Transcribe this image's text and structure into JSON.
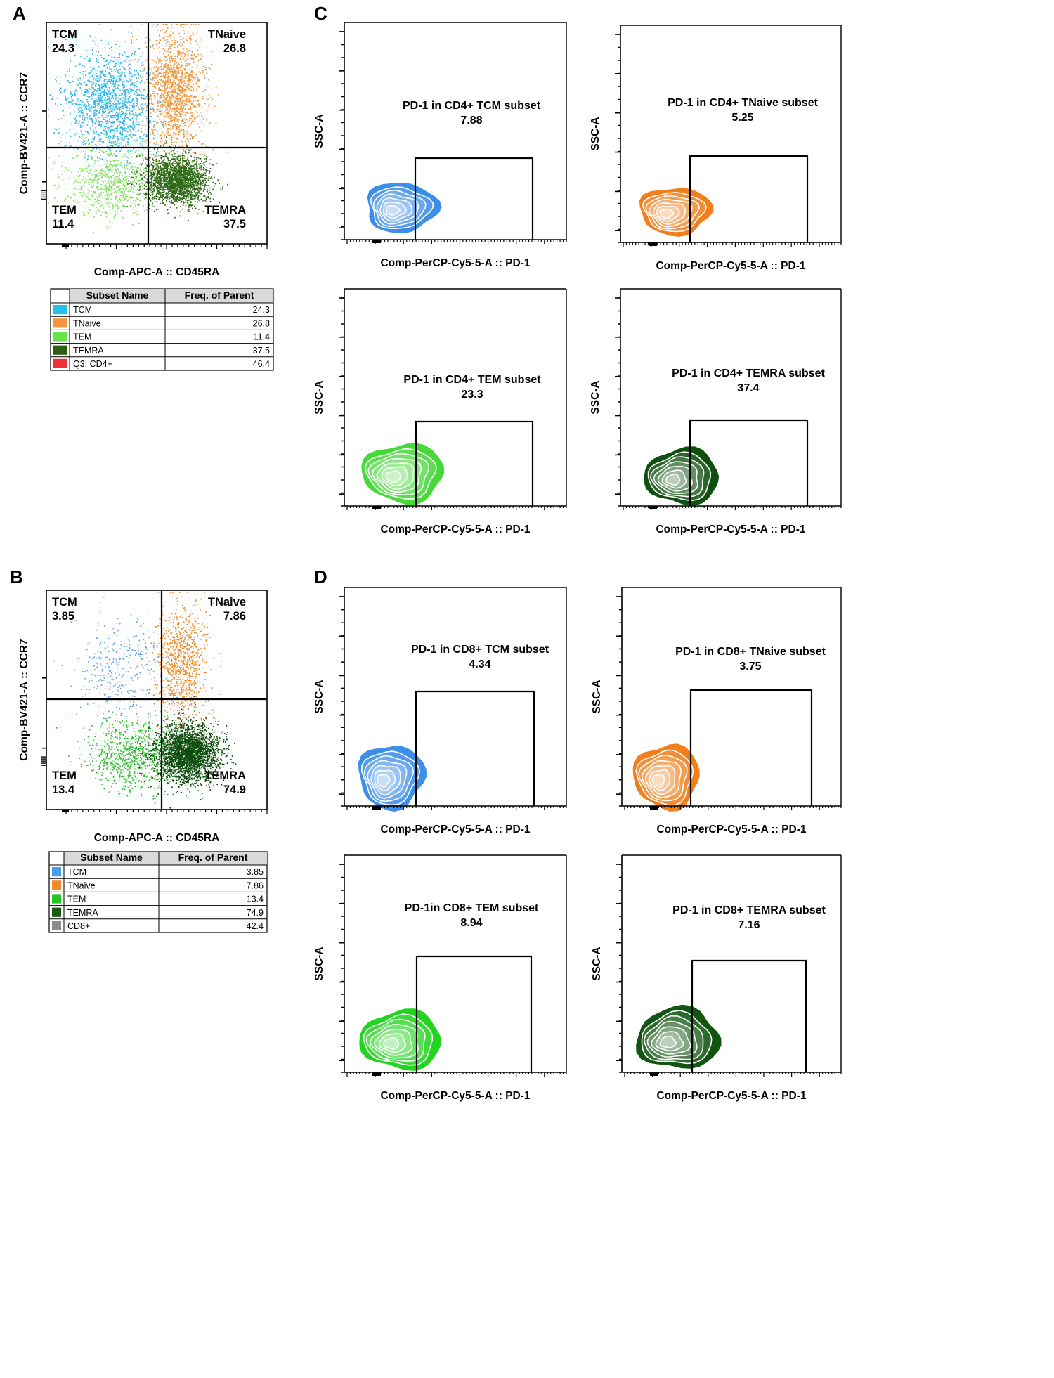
{
  "chart_data": [
    {
      "id": "A",
      "type": "scatter",
      "panel_label": "A",
      "xlabel": "Comp-APC-A :: CD45RA",
      "ylabel": "Comp-BV421-A :: CCR7",
      "quadrants": [
        {
          "name": "TCM",
          "value": "24.3",
          "color": "#29b6e6"
        },
        {
          "name": "TNaive",
          "value": "26.8",
          "color": "#f2973a"
        },
        {
          "name": "TEM",
          "value": "11.4",
          "color": "#7ee35a"
        },
        {
          "name": "TEMRA",
          "value": "37.5",
          "color": "#2e6a16"
        }
      ],
      "table": {
        "headers": [
          "Subset Name",
          "Freq. of Parent"
        ],
        "rows": [
          {
            "name": "TCM",
            "value": "24.3",
            "color": "#1fc3e8"
          },
          {
            "name": "TNaive",
            "value": "26.8",
            "color": "#f5943b"
          },
          {
            "name": "TEM",
            "value": "11.4",
            "color": "#66e44a"
          },
          {
            "name": "TEMRA",
            "value": "37.5",
            "color": "#2b5e12"
          },
          {
            "name": "Q3: CD4+",
            "value": "46.4",
            "color": "#ee2f3a"
          }
        ]
      }
    },
    {
      "id": "B",
      "type": "scatter",
      "panel_label": "B",
      "xlabel": "Comp-APC-A :: CD45RA",
      "ylabel": "Comp-BV421-A :: CCR7",
      "quadrants": [
        {
          "name": "TCM",
          "value": "3.85",
          "color": "#5aa0e8"
        },
        {
          "name": "TNaive",
          "value": "7.86",
          "color": "#f08a2a"
        },
        {
          "name": "TEM",
          "value": "13.4",
          "color": "#2ec22e"
        },
        {
          "name": "TEMRA",
          "value": "74.9",
          "color": "#0d4d0d"
        }
      ],
      "table": {
        "headers": [
          "Subset Name",
          "Freq. of Parent"
        ],
        "rows": [
          {
            "name": "TCM",
            "value": "3.85",
            "color": "#4a9de8"
          },
          {
            "name": "TNaive",
            "value": "7.86",
            "color": "#f08a2a"
          },
          {
            "name": "TEM",
            "value": "13.4",
            "color": "#22c422"
          },
          {
            "name": "TEMRA",
            "value": "74.9",
            "color": "#185c14"
          },
          {
            "name": "CD8+",
            "value": "42.4",
            "color": "#8a8a8a"
          }
        ]
      }
    },
    {
      "id": "C",
      "type": "contour",
      "panel_label": "C",
      "xlabel": "Comp-PerCP-Cy5-5-A :: PD-1",
      "ylabel": "SSC-A",
      "plots": [
        {
          "title": "PD-1 in CD4+ TCM subset",
          "value": "7.88",
          "color": "#3d8ee8"
        },
        {
          "title": "PD-1 in CD4+ TNaive subset",
          "value": "5.25",
          "color": "#f07f1c"
        },
        {
          "title": "PD-1 in CD4+ TEM subset",
          "value": "23.3",
          "color": "#48d83a"
        },
        {
          "title": "PD-1 in CD4+ TEMRA subset",
          "value": "37.4",
          "color": "#0f4f0f"
        }
      ]
    },
    {
      "id": "D",
      "type": "contour",
      "panel_label": "D",
      "xlabel": "Comp-PerCP-Cy5-5-A :: PD-1",
      "ylabel": "SSC-A",
      "plots": [
        {
          "title": "PD-1 in CD8+ TCM subset",
          "value": "4.34",
          "color": "#3d8ee8"
        },
        {
          "title": "PD-1 in CD8+ TNaive subset",
          "value": "3.75",
          "color": "#f07f1c"
        },
        {
          "title": "PD-1in CD8+ TEM subset",
          "value": "8.94",
          "color": "#22d41e"
        },
        {
          "title": "PD-1 in CD8+ TEMRA subset",
          "value": "7.16",
          "color": "#115511"
        }
      ]
    }
  ]
}
